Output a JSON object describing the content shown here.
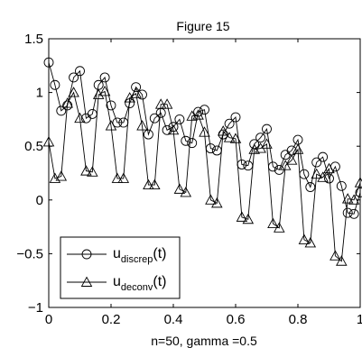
{
  "window": {
    "title": "Figure 15"
  },
  "chart_data": {
    "type": "line",
    "title": "Figure 15",
    "xlabel": "n=50, gamma =0.5",
    "ylabel": "",
    "xlim": [
      0,
      1
    ],
    "ylim": [
      -1,
      1.5
    ],
    "xticks": [
      0,
      0.2,
      0.4,
      0.6,
      0.8,
      1
    ],
    "xtick_labels": [
      "0",
      "0.2",
      "0.4",
      "0.6",
      "0.8",
      "1"
    ],
    "yticks": [
      -1,
      -0.5,
      0,
      0.5,
      1,
      1.5
    ],
    "ytick_labels": [
      "−1",
      "−0.5",
      "0",
      "0.5",
      "1",
      "1.5"
    ],
    "grid": false,
    "legend_position": "bottom-left",
    "x": [
      0,
      0.02,
      0.04,
      0.06,
      0.08,
      0.1,
      0.12,
      0.14,
      0.16,
      0.18,
      0.2,
      0.22,
      0.24,
      0.26,
      0.28,
      0.3,
      0.32,
      0.34,
      0.36,
      0.38,
      0.4,
      0.42,
      0.44,
      0.46,
      0.48,
      0.5,
      0.52,
      0.54,
      0.56,
      0.58,
      0.6,
      0.62,
      0.64,
      0.66,
      0.68,
      0.7,
      0.72,
      0.74,
      0.76,
      0.78,
      0.8,
      0.82,
      0.84,
      0.86,
      0.88,
      0.9,
      0.92,
      0.94,
      0.96,
      0.98,
      1.0
    ],
    "series": [
      {
        "name": "u",
        "subscript": "discrep",
        "suffix": "(t)",
        "marker": "circle",
        "values": [
          1.28,
          1.07,
          0.83,
          0.88,
          1.14,
          1.2,
          0.76,
          0.8,
          1.07,
          1.14,
          0.88,
          0.72,
          0.72,
          0.9,
          1.05,
          0.98,
          0.61,
          0.76,
          0.81,
          0.65,
          0.68,
          0.75,
          0.55,
          0.53,
          0.82,
          0.84,
          0.48,
          0.46,
          0.61,
          0.71,
          0.77,
          0.33,
          0.32,
          0.52,
          0.58,
          0.66,
          0.31,
          0.28,
          0.42,
          0.46,
          0.56,
          0.24,
          0.12,
          0.35,
          0.4,
          0.2,
          0.31,
          0.13,
          -0.12,
          -0.13,
          0.07
        ]
      },
      {
        "name": "u",
        "subscript": "deconv",
        "suffix": "(t)",
        "marker": "triangle",
        "values": [
          0.54,
          0.2,
          0.22,
          0.9,
          1.0,
          0.76,
          0.27,
          0.26,
          0.98,
          1.01,
          0.69,
          0.2,
          0.2,
          0.95,
          0.99,
          0.69,
          0.14,
          0.14,
          0.89,
          0.89,
          0.65,
          0.1,
          0.07,
          0.78,
          0.79,
          0.63,
          0.0,
          -0.03,
          0.64,
          0.58,
          0.57,
          -0.16,
          -0.18,
          0.47,
          0.48,
          0.52,
          -0.22,
          -0.26,
          0.32,
          0.37,
          0.47,
          -0.37,
          -0.4,
          0.24,
          0.21,
          0.29,
          -0.52,
          -0.57,
          0.01,
          0.0,
          0.16
        ]
      }
    ]
  }
}
